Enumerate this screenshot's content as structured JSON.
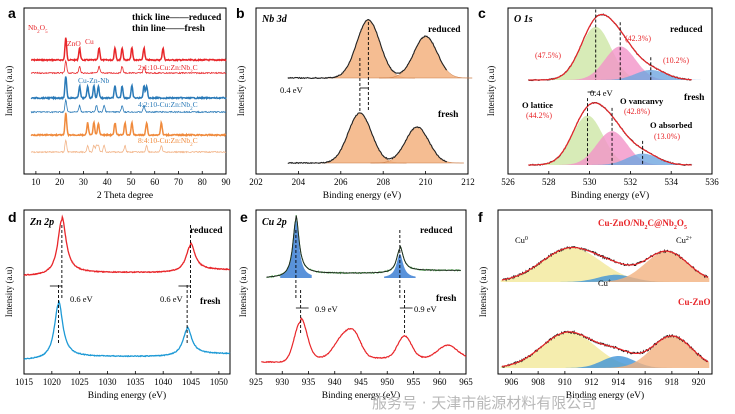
{
  "watermark": "服务号 · 天津市能源材料有限公司",
  "colors": {
    "red": "#e8262a",
    "blue": "#2a7ab8",
    "orange": "#f08a3c",
    "peach": "#f2b488",
    "fill_orange": "#f3b27f",
    "fill_green": "#cde6a5",
    "fill_pink": "#f293c8",
    "fill_blue": "#6fa6e0",
    "fill_yellow": "#f3e89a",
    "fit": "#222222"
  },
  "chart_data": [
    {
      "panel": "a",
      "type": "line",
      "title": "",
      "xlabel": "2 Theta degree",
      "ylabel": "Intensity (a.u)",
      "xlim": [
        5,
        90
      ],
      "xticks": [
        10,
        20,
        30,
        40,
        50,
        60,
        70,
        80,
        90
      ],
      "legend": [
        "thick line——reduced",
        "thin line——fresh"
      ],
      "phase_labels": [
        "Nb2O5",
        "ZnO",
        "Cu",
        "Cu-Zn-Nb"
      ],
      "series": [
        {
          "name": "2:1:10-Cu:Zn:Nb2C reduced",
          "color": "#e8262a",
          "peaks_2theta": [
            22.6,
            28.4,
            36.6,
            43.3,
            46.3,
            50.4,
            55.5,
            63.5
          ]
        },
        {
          "name": "2:1:10-Cu:Zn:Nb2C fresh",
          "color": "#e8262a",
          "peaks_2theta": [
            22.6,
            28.4,
            36.6,
            46.3,
            55.5
          ]
        },
        {
          "name": "4:2:10-Cu:Zn:Nb2C reduced",
          "color": "#2a7ab8",
          "peaks_2theta": [
            22.6,
            28.4,
            31.8,
            34.4,
            36.3,
            43.3,
            46.3,
            50.4,
            55.5,
            56.6
          ]
        },
        {
          "name": "4:2:10-Cu:Zn:Nb2C fresh",
          "color": "#2a7ab8",
          "peaks_2theta": [
            22.6,
            28.4,
            35.5,
            38.7,
            46.3,
            55.5
          ]
        },
        {
          "name": "8:4:10-Cu:Zn:Nb2C reduced",
          "color": "#f08a3c",
          "peaks_2theta": [
            22.6,
            31.8,
            34.4,
            36.3,
            43.3,
            47.5,
            50.4,
            56.6,
            62.8
          ]
        },
        {
          "name": "8:4:10-Cu:Zn:Nb2C fresh",
          "color": "#f2b488",
          "peaks_2theta": [
            22.6,
            31.8,
            34.4,
            35.5,
            36.3,
            38.7,
            47.5,
            56.6,
            62.8
          ]
        }
      ],
      "series_labels": [
        "2:1:10-Cu:Zn:Nb2C",
        "4:2:10-Cu:Zn:Nb2C",
        "8:4:10-Cu:Zn:Nb2C"
      ]
    },
    {
      "panel": "b",
      "type": "line",
      "title": "Nb 3d",
      "xlabel": "Binding energy (eV)",
      "ylabel": "Intensity (a.u)",
      "xlim": [
        202,
        212
      ],
      "xticks": [
        202,
        204,
        206,
        208,
        210,
        212
      ],
      "series_labels": [
        "reduced",
        "fresh"
      ],
      "shift_label": "0.4 eV",
      "reduced_peaks_eV": [
        207.3,
        210.0
      ],
      "fresh_peaks_eV": [
        206.9,
        209.6
      ]
    },
    {
      "panel": "c",
      "type": "line",
      "title": "O 1s",
      "xlabel": "Binding energy (eV)",
      "ylabel": "Intensity (a.u)",
      "xlim": [
        526,
        536
      ],
      "xticks": [
        526,
        528,
        530,
        532,
        534,
        536
      ],
      "series_labels": [
        "reduced",
        "fresh"
      ],
      "shift_label": "0.4 eV",
      "component_labels": [
        "O lattice",
        "O vancanvy",
        "O absorbed"
      ],
      "reduced_components": [
        {
          "center": 530.3,
          "percent": "(47.5%)"
        },
        {
          "center": 531.5,
          "percent": "(42.3%)"
        },
        {
          "center": 533.0,
          "percent": "(10.2%)"
        }
      ],
      "fresh_components": [
        {
          "center": 529.9,
          "percent": "(44.2%)"
        },
        {
          "center": 531.1,
          "percent": "(42.8%)"
        },
        {
          "center": 532.6,
          "percent": "(13.0%)"
        }
      ]
    },
    {
      "panel": "d",
      "type": "line",
      "title": "Zn 2p",
      "xlabel": "Binding energy (eV)",
      "ylabel": "Intensity (a.u)",
      "xlim": [
        1015,
        1052
      ],
      "xticks": [
        1015,
        1020,
        1025,
        1030,
        1035,
        1040,
        1045,
        1050
      ],
      "series_labels": [
        "reduced",
        "fresh"
      ],
      "shift_labels": [
        "0.6 eV",
        "0.6 eV"
      ],
      "reduced_peaks_eV": [
        1021.8,
        1044.9
      ],
      "fresh_peaks_eV": [
        1021.2,
        1044.3
      ]
    },
    {
      "panel": "e",
      "type": "line",
      "title": "Cu 2p",
      "xlabel": "Binding energy (eV)",
      "ylabel": "Intensity (a.u)",
      "xlim": [
        925,
        965
      ],
      "xticks": [
        925,
        930,
        935,
        940,
        945,
        950,
        955,
        960,
        965
      ],
      "series_labels": [
        "reduced",
        "fresh"
      ],
      "shift_labels": [
        "0.9 eV",
        "0.9 eV"
      ],
      "reduced_peaks_eV": [
        932.6,
        952.4
      ],
      "fresh_peaks_eV": [
        933.5,
        953.3
      ],
      "fresh_satellites_eV": [
        941.5,
        943.8,
        961.5
      ]
    },
    {
      "panel": "f",
      "type": "line",
      "title": "",
      "xlabel": "Binding energy (eV)",
      "ylabel": "Intensity (a.u)",
      "xlim": [
        905,
        921
      ],
      "xticks": [
        906,
        908,
        910,
        912,
        914,
        916,
        918,
        920
      ],
      "series_labels": [
        "Cu-ZnO/Nb2C@Nb2O5",
        "Cu-ZnO"
      ],
      "component_labels": [
        "Cu0",
        "Cu+",
        "Cu2+"
      ],
      "top_components_eV": [
        910.5,
        913.8,
        917.6
      ],
      "bottom_components_eV": [
        910.3,
        914.0,
        918.0
      ]
    }
  ],
  "labels": {
    "a_thick": "thick line——reduced",
    "a_thin": "thin line——fresh",
    "a_nb2o5": "Nb",
    "a_zno": "ZnO",
    "a_cu": "Cu",
    "a_cuznnb": "Cu-Zn-Nb",
    "a_s1": "2:1:10-Cu:Zn:Nb",
    "a_s2": "4:2:10-Cu:Zn:Nb",
    "a_s3": "8:4:10-Cu:Zn:Nb",
    "f_top": "Cu-ZnO/Nb",
    "f_bottom": "Cu-ZnO",
    "f_cu0": "Cu",
    "f_cup": "Cu",
    "f_cu2": "Cu"
  }
}
